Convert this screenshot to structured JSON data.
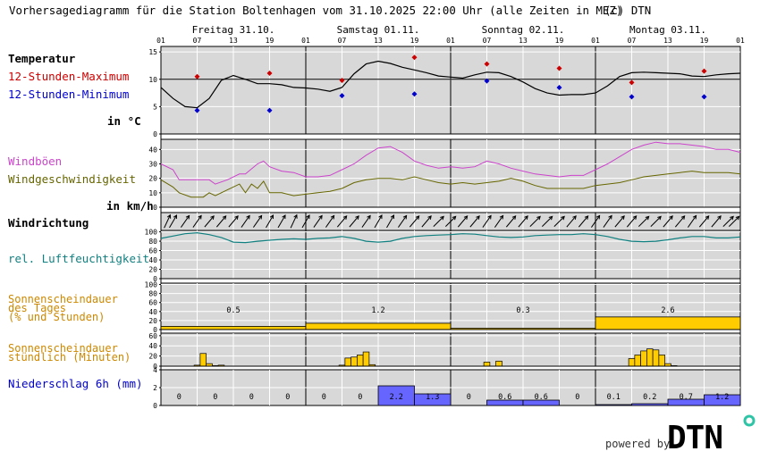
{
  "header": {
    "title": "Vorhersagediagramm für die Station Boltenhagen vom 31.10.2025 22:00 Uhr (alle Zeiten in MEZ)",
    "copyright": "(c) DTN"
  },
  "days": [
    {
      "label": "Freitag 31.10."
    },
    {
      "label": "Samstag 01.11."
    },
    {
      "label": "Sonntag 02.11."
    },
    {
      "label": "Montag 03.11."
    }
  ],
  "hour_ticks": [
    "01",
    "07",
    "13",
    "19"
  ],
  "hour_ticks_end": "01",
  "labels": {
    "temperature": "Temperatur",
    "tmax": "12-Stunden-Maximum",
    "tmin": "12-Stunden-Minimum",
    "temp_unit": "in °C",
    "gusts": "Windböen",
    "windspeed": "Windgeschwindigkeit",
    "wind_unit": "in km/h",
    "winddir": "Windrichtung",
    "humidity": "rel. Luftfeuchtigkeit",
    "sun_day_1": "Sonnenscheindauer",
    "sun_day_2": "des Tages",
    "sun_day_3": "(% und Stunden)",
    "sun_hour_1": "Sonnenscheindauer",
    "sun_hour_2": "stündlich (Minuten)",
    "precip": "Niederschlag 6h (mm)"
  },
  "colors": {
    "panel_bg": "#d8d8d8",
    "temperature": "#000000",
    "tmax": "#cc0000",
    "tmin": "#0000cc",
    "gusts": "#cc44cc",
    "windspeed": "#666600",
    "humidity": "#118080",
    "sunshine": "#ffcc00",
    "sunshine_label": "#cc8800",
    "precip": "#6666ff",
    "precip_label": "#0000cc"
  },
  "chart_data": {
    "type": "line",
    "x_unit": "hours from Fr 31.10. 01:00 (MEZ)",
    "x_range": [
      0,
      96
    ],
    "temperature": {
      "ylim": [
        0,
        16
      ],
      "yticks": [
        0,
        5,
        10,
        15
      ],
      "series": [
        {
          "name": "Temperatur",
          "x": [
            0,
            2,
            4,
            6,
            8,
            10,
            12,
            14,
            16,
            18,
            20,
            22,
            24,
            26,
            28,
            30,
            32,
            34,
            36,
            38,
            40,
            42,
            44,
            46,
            48,
            50,
            52,
            54,
            56,
            58,
            60,
            62,
            64,
            66,
            68,
            70,
            72,
            74,
            76,
            78,
            80,
            82,
            84,
            86,
            88,
            90,
            92,
            94,
            96
          ],
          "values": [
            8.5,
            6.5,
            5,
            4.8,
            6.5,
            9.8,
            10.7,
            10,
            9.2,
            9.2,
            9,
            8.5,
            8.4,
            8.2,
            7.8,
            8.5,
            11,
            12.8,
            13.3,
            12.9,
            12.2,
            11.7,
            11.2,
            10.6,
            10.4,
            10.2,
            10.8,
            11.3,
            11.2,
            10.5,
            9.5,
            8.3,
            7.5,
            7.1,
            7.2,
            7.2,
            7.5,
            8.8,
            10.5,
            11.2,
            11.3,
            11.2,
            11.1,
            11,
            10.6,
            10.5,
            10.8,
            11,
            11.1
          ]
        }
      ],
      "tmax": {
        "x": [
          6,
          18,
          30,
          42,
          54,
          66,
          78,
          90
        ],
        "values": [
          10.5,
          11.1,
          9.8,
          14,
          12.8,
          12,
          9.4,
          11.5
        ]
      },
      "tmin": {
        "x": [
          6,
          18,
          30,
          42,
          54,
          66,
          78,
          90
        ],
        "values": [
          4.3,
          4.3,
          7,
          7.3,
          9.7,
          8.5,
          6.8,
          6.8
        ]
      }
    },
    "wind": {
      "ylim": [
        0,
        47
      ],
      "yticks": [
        0,
        10,
        20,
        30,
        40
      ],
      "gusts": {
        "name": "Windböen",
        "x": [
          0,
          2,
          3,
          5,
          8,
          9,
          11,
          13,
          14,
          16,
          17,
          18,
          20,
          22,
          24,
          26,
          28,
          30,
          32,
          34,
          36,
          38,
          40,
          42,
          44,
          46,
          48,
          50,
          52,
          54,
          56,
          58,
          60,
          62,
          64,
          66,
          68,
          70,
          72,
          74,
          76,
          78,
          80,
          82,
          84,
          86,
          88,
          90,
          92,
          94,
          96
        ],
        "values": [
          30,
          26,
          19,
          19,
          19,
          16,
          19,
          23,
          23,
          30,
          32,
          28,
          25,
          24,
          21,
          21,
          22,
          26,
          30,
          36,
          41,
          42,
          38,
          32,
          29,
          27,
          28,
          27,
          28,
          32,
          30,
          27,
          25,
          23,
          22,
          21,
          22,
          22,
          26,
          30,
          35,
          40,
          43,
          45,
          44,
          44,
          43,
          42,
          40,
          40,
          38
        ]
      },
      "speed": {
        "name": "Windgeschwindigkeit",
        "x": [
          0,
          2,
          3,
          5,
          7,
          8,
          9,
          11,
          13,
          14,
          15,
          16,
          17,
          18,
          20,
          22,
          24,
          26,
          28,
          30,
          32,
          34,
          36,
          38,
          40,
          42,
          44,
          46,
          48,
          50,
          52,
          54,
          56,
          58,
          60,
          62,
          64,
          66,
          68,
          70,
          72,
          74,
          76,
          78,
          80,
          82,
          84,
          86,
          88,
          90,
          92,
          94,
          96
        ],
        "values": [
          19,
          14,
          10,
          7,
          7,
          10,
          8,
          12,
          16,
          10,
          16,
          13,
          18,
          10,
          10,
          8,
          9,
          10,
          11,
          13,
          17,
          19,
          20,
          20,
          19,
          21,
          19,
          17,
          16,
          17,
          16,
          17,
          18,
          20,
          18,
          15,
          13,
          13,
          13,
          13,
          15,
          16,
          17,
          19,
          21,
          22,
          23,
          24,
          25,
          24,
          24,
          24,
          23
        ]
      }
    },
    "wind_direction": {
      "x": [
        0,
        2,
        4,
        6,
        8,
        10,
        12,
        14,
        16,
        18,
        20,
        22,
        24,
        26,
        28,
        30,
        32,
        34,
        36,
        38,
        40,
        42,
        44,
        46,
        48,
        50,
        52,
        54,
        56,
        58,
        60,
        62,
        64,
        66,
        68,
        70,
        72,
        74,
        76,
        78,
        80,
        82,
        84,
        86,
        88,
        90,
        92,
        94,
        96
      ],
      "arrows_point_to_deg": [
        25,
        30,
        35,
        35,
        40,
        40,
        40,
        35,
        35,
        30,
        30,
        25,
        30,
        35,
        35,
        40,
        40,
        35,
        30,
        30,
        35,
        40,
        40,
        45,
        45,
        40,
        40,
        35,
        35,
        40,
        40,
        45,
        45,
        45,
        40,
        40,
        35,
        35,
        40,
        40,
        45,
        45,
        40,
        40,
        35,
        40,
        40,
        45,
        45
      ]
    },
    "humidity": {
      "name": "rel. Luftfeuchtigkeit",
      "ylim": [
        0,
        103
      ],
      "yticks": [
        0,
        20,
        40,
        60,
        80,
        100
      ],
      "x": [
        0,
        2,
        4,
        6,
        8,
        10,
        12,
        14,
        16,
        18,
        20,
        22,
        24,
        26,
        28,
        30,
        32,
        34,
        36,
        38,
        40,
        42,
        44,
        46,
        48,
        50,
        52,
        54,
        56,
        58,
        60,
        62,
        64,
        66,
        68,
        70,
        72,
        74,
        76,
        78,
        80,
        82,
        84,
        86,
        88,
        90,
        92,
        94,
        96
      ],
      "values": [
        86,
        91,
        96,
        98,
        94,
        88,
        78,
        77,
        80,
        82,
        84,
        85,
        84,
        86,
        87,
        90,
        86,
        80,
        78,
        80,
        86,
        90,
        92,
        93,
        94,
        96,
        95,
        92,
        89,
        88,
        89,
        92,
        93,
        94,
        94,
        96,
        94,
        90,
        84,
        80,
        79,
        80,
        83,
        87,
        90,
        90,
        87,
        87,
        89
      ]
    },
    "sunshine_daily": {
      "yticks": [
        0,
        20,
        40,
        60,
        80,
        100
      ],
      "ylim": [
        0,
        103
      ],
      "days": [
        "31.10.",
        "01.11.",
        "02.11.",
        "03.11."
      ],
      "percent": [
        7,
        14,
        3,
        28
      ],
      "hours_labels": [
        "0.5",
        "1.2",
        "0.3",
        "2.6"
      ]
    },
    "sunshine_hourly": {
      "ylim": [
        0,
        65
      ],
      "yticks": [
        0,
        20,
        40,
        60
      ],
      "hours": [
        6,
        7,
        8,
        9,
        10,
        30,
        31,
        32,
        33,
        34,
        35,
        54,
        56,
        78,
        79,
        80,
        81,
        82,
        83,
        84,
        85
      ],
      "minutes": [
        2,
        25,
        5,
        1,
        2,
        2,
        16,
        18,
        22,
        28,
        3,
        8,
        10,
        15,
        22,
        30,
        34,
        32,
        22,
        5,
        1
      ]
    },
    "precipitation_6h": {
      "ylim": [
        0,
        4
      ],
      "yticks": [
        0,
        2,
        4
      ],
      "x_start": [
        0,
        6,
        12,
        18,
        24,
        30,
        36,
        42,
        48,
        54,
        60,
        66,
        72,
        78,
        84,
        90
      ],
      "values": [
        0,
        0,
        0,
        0,
        0,
        0,
        2.2,
        1.3,
        0,
        0.6,
        0.6,
        0,
        0.1,
        0.2,
        0.7,
        1.2
      ],
      "labels": [
        "0",
        "0",
        "0",
        "0",
        "0",
        "0",
        "2.2",
        "1.3",
        "0",
        "0.6",
        "0.6",
        "0",
        "0.1",
        "0.2",
        "0.7",
        "1.2"
      ]
    }
  },
  "footer": {
    "powered_by": "powered by",
    "logo_text": "DTN"
  }
}
